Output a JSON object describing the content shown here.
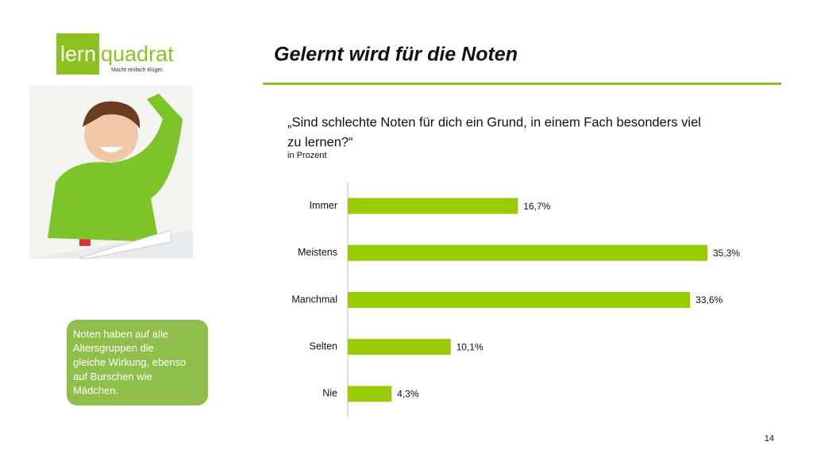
{
  "logo": {
    "left": "lern",
    "right": "quadrat",
    "tagline": "Macht einfach klüger."
  },
  "callout": [
    "Noten haben auf alle",
    "Altersgruppen die",
    "gleiche Wirkung, ebenso",
    "auf Burschen wie",
    "Mädchen."
  ],
  "page_number": "14",
  "chart_data": {
    "type": "hbar",
    "title": "Gelernt wird für die Noten",
    "subtitle": [
      "„Sind schlechte Noten für dich ein Grund, in einem Fach besonders viel",
      "zu lernen?“"
    ],
    "unit_note": "in Prozent",
    "categories": [
      "Immer",
      "Meistens",
      "Manchmal",
      "Selten",
      "Nie"
    ],
    "values": [
      16.7,
      35.3,
      33.6,
      10.1,
      4.3
    ],
    "value_labels": [
      "16,7%",
      "35,3%",
      "33,6%",
      "10,1%",
      "4,3%"
    ],
    "color": "#99cc00"
  }
}
